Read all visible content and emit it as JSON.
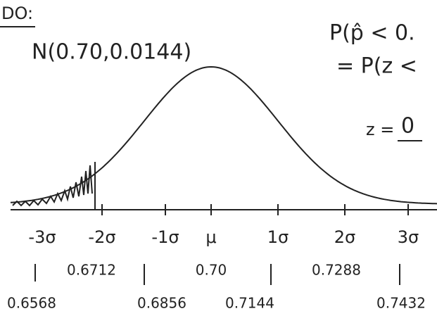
{
  "header": {
    "title": "DO:"
  },
  "distribution": "N(0.70,0.0144)",
  "work": [
    "P(p̂ < 0.",
    "= P(z <",
    "z = ",
    "0"
  ],
  "axis": {
    "sigma_labels": [
      "-3σ",
      "-2σ",
      "-1σ",
      "μ",
      "1σ",
      "2σ",
      "3σ"
    ],
    "upper_values": [
      "0.6712",
      "0.70",
      "0.7288"
    ],
    "lower_values": [
      "0.6568",
      "0.6856",
      "0.7144",
      "0.7432"
    ]
  }
}
